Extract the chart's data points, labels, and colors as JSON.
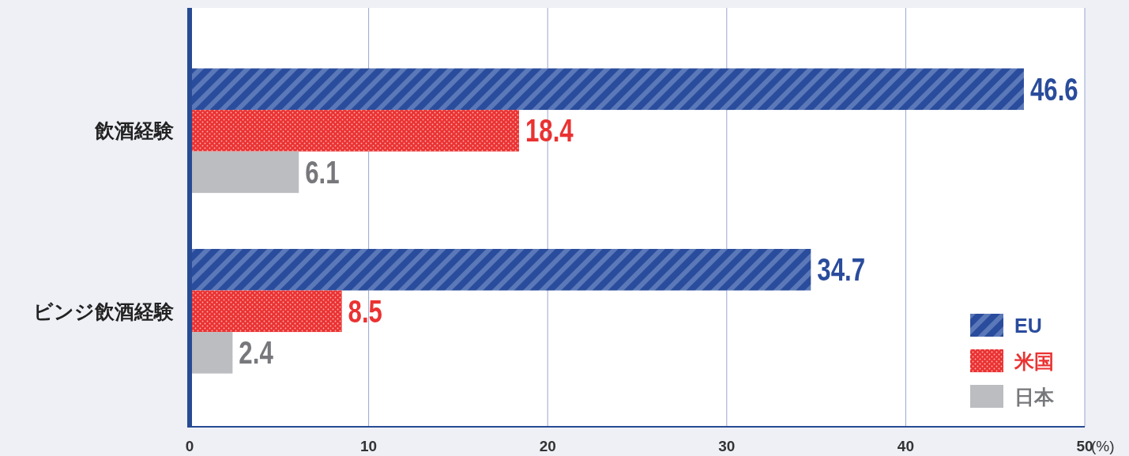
{
  "chart_data": {
    "type": "bar",
    "orientation": "horizontal",
    "xlabel": "(%)",
    "categories": [
      "飲酒経験",
      "ビンジ飲酒経験"
    ],
    "series": [
      {
        "name": "EU",
        "color": "#2a4c9c",
        "values": [
          46.6,
          34.7
        ]
      },
      {
        "name": "米国",
        "color": "#ea3232",
        "values": [
          18.4,
          8.5
        ]
      },
      {
        "name": "日本",
        "color": "#bcbdc1",
        "values": [
          6.1,
          2.4
        ]
      }
    ],
    "xlim": [
      0,
      50
    ],
    "xticks": [
      0,
      10,
      20,
      30,
      40,
      50
    ],
    "grid": "x",
    "legend": "bottom right",
    "data_labels": true
  }
}
